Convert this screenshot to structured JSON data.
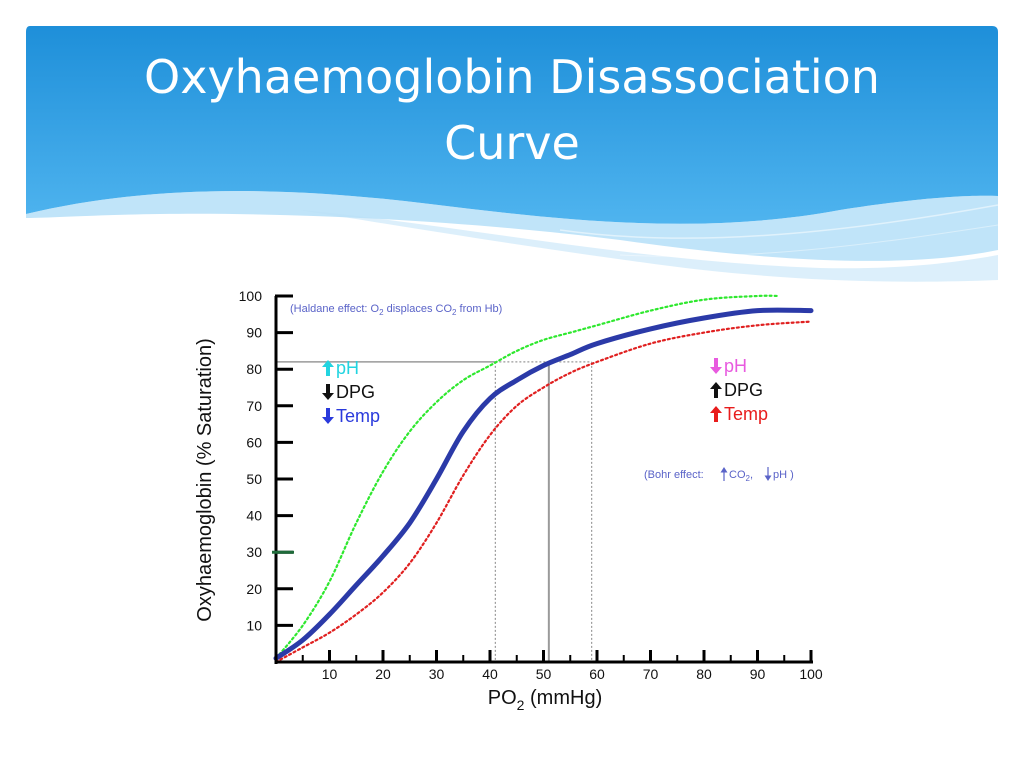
{
  "slide": {
    "title_line1": "Oxyhaemoglobin Disassociation",
    "title_line2": "Curve",
    "header_color": "#1e8fd9"
  },
  "chart_data": {
    "type": "line",
    "xlabel": "PO",
    "xlabel_sub": "2",
    "xlabel_unit": " (mmHg)",
    "ylabel": "Oxyhaemoglobin (% Saturation)",
    "xlim": [
      0,
      100
    ],
    "ylim": [
      0,
      100
    ],
    "x_ticks": [
      10,
      20,
      30,
      40,
      50,
      60,
      70,
      80,
      90,
      100
    ],
    "y_ticks": [
      10,
      20,
      30,
      40,
      50,
      60,
      70,
      80,
      90,
      100
    ],
    "grid": false,
    "series": [
      {
        "style": "dotted",
        "color": "#2ee82e",
        "x": [
          0,
          5,
          10,
          15,
          20,
          25,
          30,
          35,
          40,
          45,
          50,
          55,
          60,
          70,
          80,
          90,
          94
        ],
        "y": [
          1,
          10,
          22,
          38,
          52,
          63,
          71,
          77,
          81,
          85,
          88,
          90,
          92,
          96,
          99,
          100,
          100
        ]
      },
      {
        "style": "solid",
        "color": "#2b3aa8",
        "x": [
          0,
          5,
          10,
          15,
          20,
          25,
          30,
          35,
          40,
          45,
          50,
          55,
          60,
          70,
          80,
          90,
          100
        ],
        "y": [
          1,
          6,
          13,
          21,
          29,
          38,
          50,
          63,
          72,
          77,
          81,
          84,
          87,
          91,
          94,
          96,
          96
        ]
      },
      {
        "style": "dotted",
        "color": "#e02020",
        "x": [
          0,
          5,
          10,
          15,
          20,
          25,
          30,
          35,
          40,
          45,
          50,
          55,
          60,
          70,
          80,
          90,
          100
        ],
        "y": [
          0,
          4,
          8,
          13,
          19,
          27,
          38,
          51,
          62,
          70,
          75,
          79,
          82,
          87,
          90,
          92,
          93
        ]
      }
    ],
    "reference_lines": [
      {
        "x": 41,
        "y": 82,
        "style": "dotted"
      },
      {
        "x": 51,
        "y": 82,
        "style": "solid"
      },
      {
        "x": 59,
        "y": 82,
        "style": "dotted"
      }
    ],
    "y_marker": {
      "y": 30,
      "color": "#1f6b3a"
    },
    "annotations": {
      "haldane_prefix": "(Haldane effect: O",
      "haldane_sub1": "2",
      "haldane_mid": " displaces CO",
      "haldane_sub2": "2",
      "haldane_suffix": " from Hb)",
      "haldane_color": "#5a63c8",
      "bohr_prefix": "(Bohr effect:",
      "bohr_mid": " CO",
      "bohr_sub": "2",
      "bohr_comma": ",",
      "bohr_suffix": "pH )",
      "bohr_color": "#5a63c8",
      "left_effects": [
        {
          "arrow": "up",
          "arrow_color": "#22d4e0",
          "label": "pH",
          "label_color": "#22d4e0"
        },
        {
          "arrow": "down",
          "arrow_color": "#111111",
          "label": "DPG",
          "label_color": "#111111"
        },
        {
          "arrow": "down",
          "arrow_color": "#2a3adc",
          "label": "Temp",
          "label_color": "#2a3adc"
        }
      ],
      "right_effects": [
        {
          "arrow": "down",
          "arrow_color": "#e85adf",
          "label": "pH",
          "label_color": "#e85adf"
        },
        {
          "arrow": "up",
          "arrow_color": "#111111",
          "label": "DPG",
          "label_color": "#111111"
        },
        {
          "arrow": "up",
          "arrow_color": "#e81c1c",
          "label": "Temp",
          "label_color": "#e81c1c"
        }
      ]
    }
  }
}
